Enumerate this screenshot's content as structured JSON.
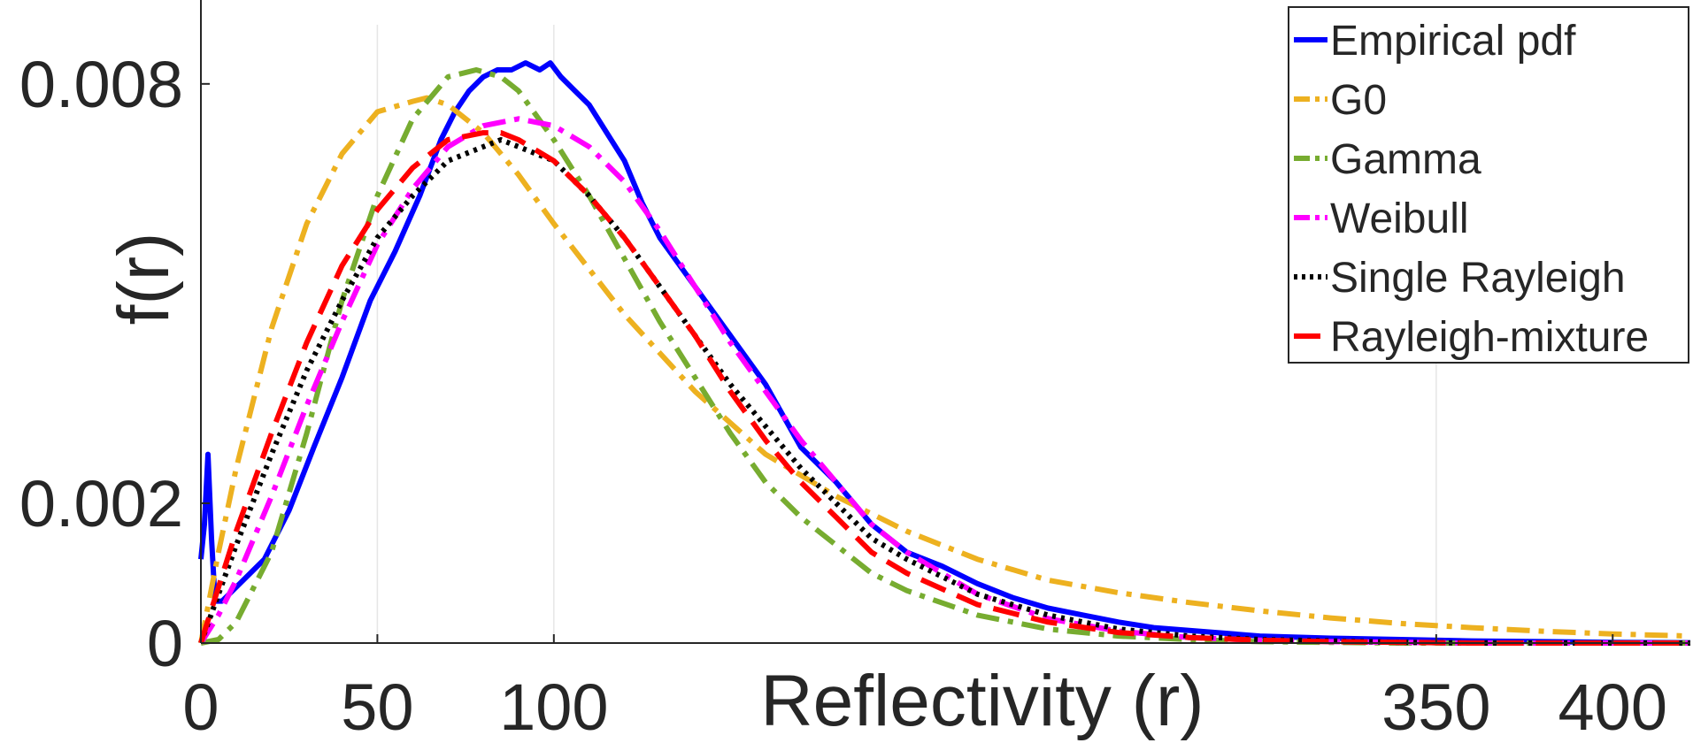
{
  "chart_data": {
    "type": "line",
    "title": "",
    "xlabel": "Reflectivity (r)",
    "ylabel": "f(r)",
    "xlim": [
      0,
      422
    ],
    "ylim": [
      0,
      0.0092
    ],
    "x_ticks": [
      {
        "value": 0,
        "label": "0"
      },
      {
        "value": 50,
        "label": "50"
      },
      {
        "value": 100,
        "label": "100"
      },
      {
        "value": 350,
        "label": "350"
      },
      {
        "value": 400,
        "label": "400"
      }
    ],
    "y_ticks": [
      {
        "value": 0,
        "label": "0"
      },
      {
        "value": 0.002,
        "label": "0.002"
      },
      {
        "value": 0.008,
        "label": "0.008"
      }
    ],
    "grid": {
      "vertical": [
        50,
        100,
        350
      ],
      "horizontal": []
    },
    "legend": {
      "position": "top-right"
    },
    "series": [
      {
        "name": "Empirical pdf",
        "color": "#0000ff",
        "style": "solid",
        "x": [
          0,
          1,
          2,
          3,
          4,
          6,
          8,
          12,
          18,
          25,
          32,
          40,
          48,
          55,
          62,
          68,
          72,
          76,
          80,
          84,
          88,
          92,
          96,
          99,
          102,
          106,
          110,
          115,
          120,
          125,
          130,
          140,
          150,
          160,
          170,
          180,
          190,
          200,
          210,
          220,
          230,
          240,
          250,
          260,
          270,
          280,
          290,
          300,
          320,
          340,
          360,
          380,
          400,
          422
        ],
        "y": [
          0.0012,
          0.0017,
          0.0027,
          0.0015,
          0.0006,
          0.0006,
          0.0007,
          0.0009,
          0.0012,
          0.0019,
          0.0028,
          0.0038,
          0.0049,
          0.0056,
          0.0064,
          0.0072,
          0.0076,
          0.0079,
          0.0081,
          0.0082,
          0.0082,
          0.0083,
          0.0082,
          0.0083,
          0.0081,
          0.0079,
          0.0077,
          0.0073,
          0.0069,
          0.0063,
          0.0058,
          0.0051,
          0.0044,
          0.0037,
          0.0028,
          0.0023,
          0.0017,
          0.0013,
          0.0011,
          0.00085,
          0.00065,
          0.0005,
          0.0004,
          0.0003,
          0.00022,
          0.00018,
          0.00014,
          0.0001,
          7e-05,
          5e-05,
          3e-05,
          2e-05,
          1e-05,
          5e-06
        ]
      },
      {
        "name": "G0",
        "color": "#edb120",
        "style": "dashdot",
        "x": [
          0,
          5,
          10,
          20,
          30,
          40,
          50,
          60,
          64,
          70,
          80,
          90,
          100,
          120,
          140,
          160,
          180,
          200,
          220,
          240,
          260,
          280,
          300,
          320,
          340,
          360,
          380,
          400,
          422
        ],
        "y": [
          0,
          0.0013,
          0.0025,
          0.0045,
          0.006,
          0.007,
          0.0076,
          0.00775,
          0.0078,
          0.0077,
          0.0073,
          0.0067,
          0.006,
          0.0047,
          0.0036,
          0.0027,
          0.0021,
          0.0016,
          0.0012,
          0.0009,
          0.00072,
          0.00058,
          0.00046,
          0.00036,
          0.00028,
          0.00022,
          0.00017,
          0.00013,
          0.0001
        ]
      },
      {
        "name": "Gamma",
        "color": "#77ac30",
        "style": "dashdot",
        "x": [
          0,
          5,
          10,
          20,
          30,
          40,
          50,
          60,
          70,
          78,
          85,
          90,
          100,
          110,
          120,
          130,
          140,
          150,
          160,
          170,
          180,
          190,
          200,
          220,
          240,
          260,
          280,
          300,
          320,
          340,
          360,
          380,
          400,
          422
        ],
        "y": [
          0,
          5e-05,
          0.0003,
          0.0013,
          0.003,
          0.0049,
          0.0064,
          0.0075,
          0.0081,
          0.0082,
          0.0081,
          0.0079,
          0.0072,
          0.0064,
          0.0055,
          0.0046,
          0.0038,
          0.003,
          0.0023,
          0.0018,
          0.0014,
          0.001,
          0.00075,
          0.0004,
          0.0002,
          0.0001,
          5e-05,
          2e-05,
          1e-05,
          0,
          0,
          0,
          0,
          0
        ]
      },
      {
        "name": "Weibull",
        "color": "#ff00ff",
        "style": "dashdot",
        "x": [
          0,
          5,
          10,
          20,
          30,
          40,
          50,
          60,
          70,
          80,
          90,
          100,
          110,
          120,
          130,
          140,
          150,
          160,
          170,
          180,
          190,
          200,
          220,
          240,
          260,
          280,
          300,
          320,
          340,
          360,
          380,
          400,
          422
        ],
        "y": [
          0,
          0.0004,
          0.0009,
          0.0021,
          0.0034,
          0.0046,
          0.0057,
          0.0065,
          0.0071,
          0.0074,
          0.0075,
          0.0074,
          0.0071,
          0.0066,
          0.0059,
          0.0051,
          0.0043,
          0.0036,
          0.0029,
          0.0023,
          0.0017,
          0.0013,
          0.0007,
          0.00035,
          0.00017,
          8e-05,
          4e-05,
          2e-05,
          1e-05,
          0,
          0,
          0,
          0
        ]
      },
      {
        "name": "Single Rayleigh",
        "color": "#000000",
        "style": "dotted",
        "x": [
          0,
          5,
          10,
          20,
          30,
          40,
          50,
          60,
          70,
          80,
          85,
          90,
          100,
          110,
          120,
          130,
          140,
          150,
          160,
          170,
          180,
          190,
          200,
          220,
          240,
          260,
          280,
          300,
          320,
          340,
          360,
          380,
          400,
          422
        ],
        "y": [
          0,
          0.0007,
          0.0014,
          0.0027,
          0.0039,
          0.0049,
          0.0058,
          0.0064,
          0.0069,
          0.0071,
          0.0072,
          0.0071,
          0.0069,
          0.0064,
          0.0058,
          0.0051,
          0.0044,
          0.0037,
          0.0031,
          0.0025,
          0.002,
          0.0015,
          0.0012,
          0.0007,
          0.0004,
          0.0002,
          0.0001,
          5e-05,
          3e-05,
          1e-05,
          0,
          0,
          0,
          0
        ]
      },
      {
        "name": "Rayleigh-mixture",
        "color": "#ff0000",
        "style": "dashed",
        "x": [
          0,
          5,
          10,
          20,
          30,
          40,
          50,
          60,
          70,
          80,
          85,
          90,
          100,
          110,
          120,
          130,
          140,
          150,
          160,
          170,
          180,
          190,
          200,
          220,
          240,
          260,
          280,
          300,
          320,
          340,
          360,
          380,
          400,
          422
        ],
        "y": [
          0,
          0.0008,
          0.0016,
          0.003,
          0.0043,
          0.0054,
          0.0062,
          0.0068,
          0.0072,
          0.0073,
          0.0073,
          0.0072,
          0.0069,
          0.0064,
          0.0058,
          0.0051,
          0.0044,
          0.0036,
          0.0029,
          0.0023,
          0.0018,
          0.0013,
          0.001,
          0.00055,
          0.0003,
          0.00015,
          8e-05,
          4e-05,
          2e-05,
          1e-05,
          0,
          0,
          0,
          0
        ]
      }
    ]
  }
}
